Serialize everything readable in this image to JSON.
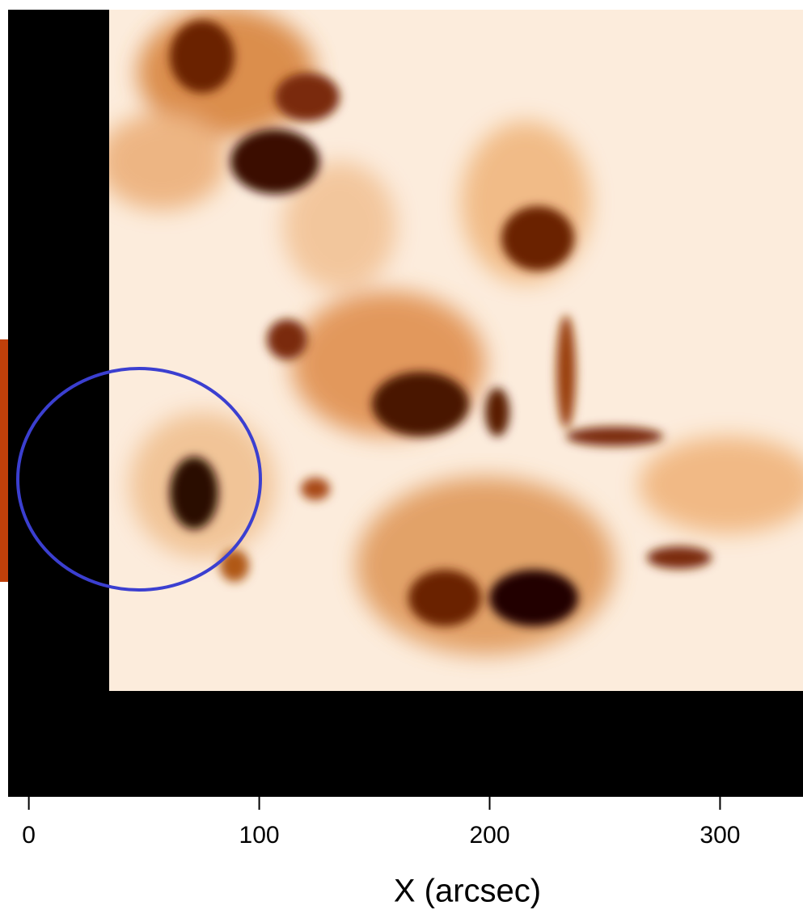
{
  "chart_data": {
    "type": "image",
    "xlabel": "X (arcsec)",
    "xlim": [
      -9,
      336
    ],
    "xticks": [
      0,
      100,
      200,
      300
    ]
  }
}
